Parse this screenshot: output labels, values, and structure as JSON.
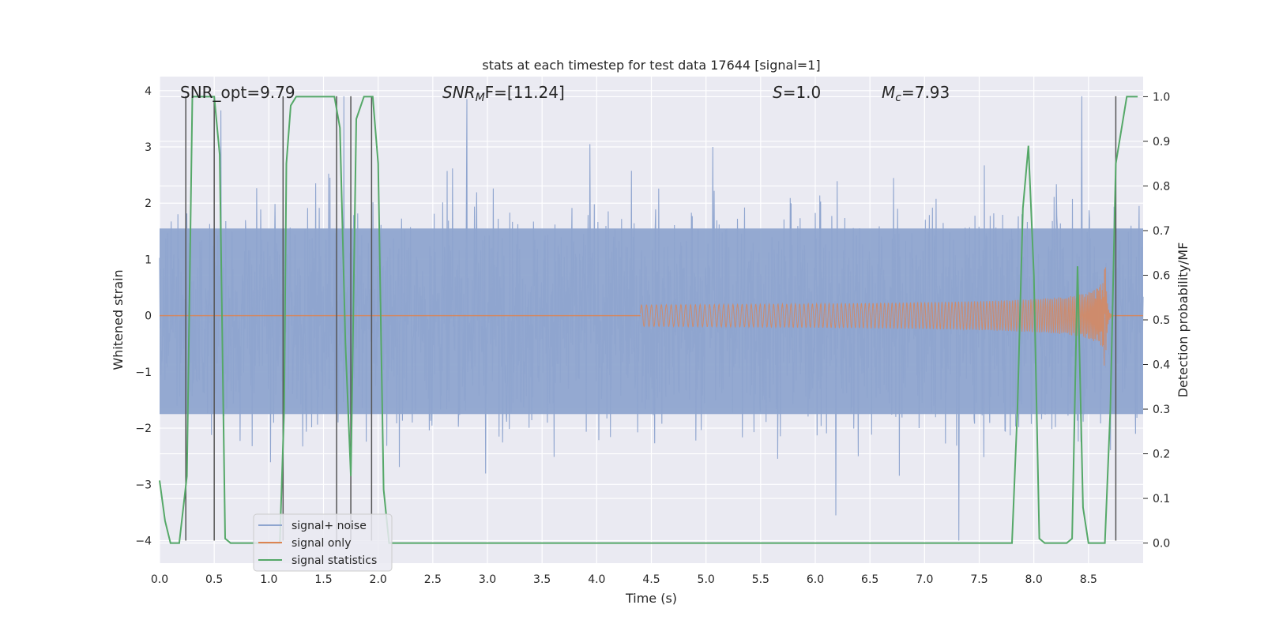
{
  "chart_data": {
    "type": "line",
    "title": "stats at each timestep for test data 17644 [signal=1]",
    "xlabel": "Time (s)",
    "ylabel_left": "Whitened strain",
    "ylabel_right": "Detection probability/MF",
    "xlim": [
      0.0,
      9.0
    ],
    "ylim_left": [
      -4.4,
      4.25
    ],
    "ylim_right": [
      -0.045,
      1.045
    ],
    "x_ticks": [
      0.0,
      0.5,
      1.0,
      1.5,
      2.0,
      2.5,
      3.0,
      3.5,
      4.0,
      4.5,
      5.0,
      5.5,
      6.0,
      6.5,
      7.0,
      7.5,
      8.0,
      8.5
    ],
    "x_tick_labels": [
      "0.0",
      "0.5",
      "1.0",
      "1.5",
      "2.0",
      "2.5",
      "3.0",
      "3.5",
      "4.0",
      "4.5",
      "5.0",
      "5.5",
      "6.0",
      "6.5",
      "7.0",
      "7.5",
      "8.0",
      "8.5"
    ],
    "y_left_ticks": [
      4,
      3,
      2,
      1,
      0,
      -1,
      -2,
      -3,
      -4
    ],
    "y_left_tick_labels": [
      "4",
      "3",
      "2",
      "1",
      "0",
      "−1",
      "−2",
      "−3",
      "−4"
    ],
    "y_right_ticks": [
      1.0,
      0.9,
      0.8,
      0.7,
      0.6,
      0.5,
      0.4,
      0.3,
      0.2,
      0.1,
      0.0
    ],
    "y_right_tick_labels": [
      "1.0",
      "0.9",
      "0.8",
      "0.7",
      "0.6",
      "0.5",
      "0.4",
      "0.3",
      "0.2",
      "0.1",
      "0.0"
    ],
    "grid": true,
    "legend_position": "lower-left",
    "annotations": [
      {
        "text": "SNR_opt=9.79"
      },
      {
        "prefix": "SNR",
        "sub": "M",
        "suffix": "F=[11.24]"
      },
      {
        "prefix": "S",
        "suffix": "=1.0"
      },
      {
        "prefix": "M",
        "sub": "c",
        "suffix": "=7.93"
      }
    ],
    "series": [
      {
        "name": "signal+ noise",
        "color": "#8fa5cf",
        "axis": "left",
        "kind": "noise",
        "envelope": 1.55,
        "peaks": [
          3.65,
          3.9,
          3.85,
          3.05,
          3.0,
          -3.55,
          -4.0,
          3.9
        ]
      },
      {
        "name": "signal only",
        "color": "#dd8452",
        "axis": "left",
        "kind": "chirp",
        "onset_s": 4.4,
        "merger_s": 8.65,
        "peak_amplitude": 1.0
      },
      {
        "name": "signal statistics",
        "color": "#55a868",
        "axis": "right",
        "x": [
          0.0,
          0.05,
          0.1,
          0.18,
          0.25,
          0.3,
          0.35,
          0.45,
          0.5,
          0.55,
          0.6,
          0.65,
          0.75,
          1.0,
          1.1,
          1.14,
          1.16,
          1.2,
          1.25,
          1.35,
          1.6,
          1.65,
          1.7,
          1.75,
          1.8,
          1.87,
          1.95,
          2.0,
          2.05,
          2.1,
          3.0,
          4.0,
          5.0,
          6.0,
          7.0,
          7.5,
          7.8,
          7.85,
          7.9,
          7.95,
          8.0,
          8.05,
          8.1,
          8.2,
          8.3,
          8.35,
          8.4,
          8.45,
          8.5,
          8.55,
          8.65,
          8.7,
          8.75,
          8.85,
          8.95
        ],
        "y": [
          0.14,
          0.05,
          0.0,
          0.0,
          0.15,
          1.0,
          1.0,
          1.0,
          1.0,
          0.87,
          0.01,
          0.0,
          0.0,
          0.0,
          0.0,
          0.3,
          0.85,
          0.98,
          1.0,
          1.0,
          1.0,
          0.93,
          0.45,
          0.15,
          0.95,
          1.0,
          1.0,
          0.85,
          0.12,
          0.0,
          0.0,
          0.0,
          0.0,
          0.0,
          0.0,
          0.0,
          0.0,
          0.3,
          0.75,
          0.89,
          0.6,
          0.01,
          0.0,
          0.0,
          0.0,
          0.01,
          0.62,
          0.08,
          0.0,
          0.0,
          0.0,
          0.3,
          0.85,
          1.0,
          1.0
        ]
      }
    ],
    "vertical_markers_s": [
      0.24,
      0.5,
      1.13,
      1.62,
      1.75,
      1.94,
      8.75
    ],
    "marker_color": "#555555"
  }
}
